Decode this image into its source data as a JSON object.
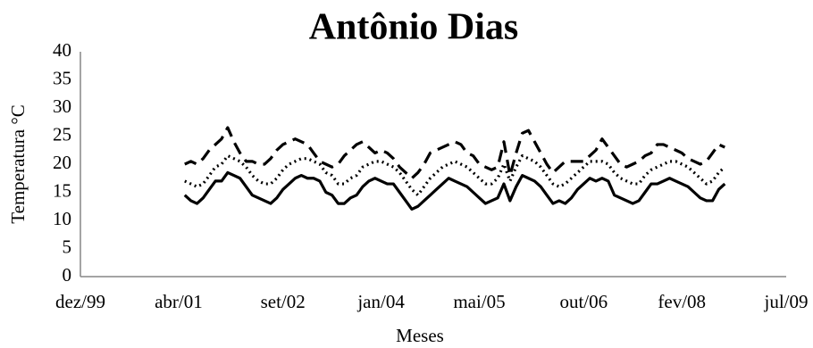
{
  "chart_data": {
    "type": "line",
    "title": "Antônio Dias",
    "x_label": "Meses",
    "y_label": "Temperatura °C",
    "x": [
      "2001-05",
      "2001-06",
      "2001-07",
      "2001-08",
      "2001-09",
      "2001-10",
      "2001-11",
      "2001-12",
      "2002-01",
      "2002-02",
      "2002-03",
      "2002-04",
      "2002-05",
      "2002-06",
      "2002-07",
      "2002-08",
      "2002-09",
      "2002-10",
      "2002-11",
      "2002-12",
      "2003-01",
      "2003-02",
      "2003-03",
      "2003-04",
      "2003-05",
      "2003-06",
      "2003-07",
      "2003-08",
      "2003-09",
      "2003-10",
      "2003-11",
      "2003-12",
      "2004-01",
      "2004-02",
      "2004-03",
      "2004-04",
      "2004-05",
      "2004-06",
      "2004-07",
      "2004-08",
      "2004-09",
      "2004-10",
      "2004-11",
      "2004-12",
      "2005-01",
      "2005-02",
      "2005-03",
      "2005-04",
      "2005-05",
      "2005-06",
      "2005-07",
      "2005-08",
      "2005-09",
      "2005-10",
      "2005-11",
      "2005-12",
      "2006-01",
      "2006-02",
      "2006-03",
      "2006-04",
      "2006-05",
      "2006-06",
      "2006-07",
      "2006-08",
      "2006-09",
      "2006-10",
      "2006-11",
      "2006-12",
      "2007-01",
      "2007-02",
      "2007-03",
      "2007-04",
      "2007-05",
      "2007-06",
      "2007-07",
      "2007-08",
      "2007-09",
      "2007-10",
      "2007-11",
      "2007-12",
      "2008-01",
      "2008-02",
      "2008-03",
      "2008-04",
      "2008-05",
      "2008-06",
      "2008-07",
      "2008-08",
      "2008-09"
    ],
    "series": [
      {
        "color": "#000000",
        "dash": "solid",
        "values": [
          14.5,
          13.5,
          13,
          14,
          15.5,
          17,
          17,
          18.5,
          18,
          17.5,
          16,
          14.5,
          14,
          13.5,
          13,
          14,
          15.5,
          16.5,
          17.5,
          18,
          17.5,
          17.5,
          17,
          15,
          14.5,
          13,
          13,
          14,
          14.5,
          16,
          17,
          17.5,
          17,
          16.5,
          16.5,
          15,
          13.5,
          12,
          12.5,
          13.5,
          14.5,
          15.5,
          16.5,
          17.5,
          17,
          16.5,
          16,
          15,
          14,
          13,
          13.5,
          14,
          16.5,
          13.5,
          16,
          18,
          17.5,
          17,
          16,
          14.5,
          13,
          13.5,
          13,
          14,
          15.5,
          16.5,
          17.5,
          17,
          17.5,
          17,
          14.5,
          14,
          13.5,
          13,
          13.5,
          15,
          16.5,
          16.5,
          17,
          17.5,
          17,
          16.5,
          16,
          15,
          14,
          13.5,
          13.5,
          15.5,
          16.5
        ]
      },
      {
        "color": "#000000",
        "dash": "dotted",
        "values": [
          17,
          16.5,
          16,
          16.5,
          18,
          19.5,
          20,
          21.5,
          21,
          20.5,
          19.5,
          18,
          17,
          16.5,
          16.5,
          17.5,
          19,
          20,
          20.5,
          21,
          21,
          20.5,
          20,
          18.5,
          18,
          16.5,
          16.5,
          17.5,
          18,
          19.5,
          20,
          20.5,
          20.5,
          20,
          19.5,
          18.5,
          17,
          15.5,
          14.5,
          16,
          17.5,
          18.5,
          19.5,
          20,
          20.5,
          20,
          19.5,
          18.5,
          17.5,
          16.5,
          16.5,
          17.5,
          20,
          17,
          19.5,
          21.5,
          21,
          20.5,
          19.5,
          18,
          16.5,
          16,
          16.5,
          17.5,
          18.5,
          19.5,
          20.5,
          20.5,
          20.5,
          20,
          18.5,
          17.5,
          17,
          16.5,
          16.5,
          18,
          19,
          19.5,
          20,
          20.5,
          20.5,
          20,
          19.5,
          18.5,
          17.5,
          16.5,
          17,
          18.5,
          19.5
        ]
      },
      {
        "color": "#000000",
        "dash": "dashed",
        "values": [
          20,
          20.5,
          20,
          21,
          22.5,
          23.5,
          24.5,
          26.5,
          24,
          22,
          20.5,
          20.5,
          20,
          20,
          21,
          22.5,
          23.5,
          24,
          24.5,
          24,
          23.5,
          22,
          20.5,
          20,
          19.5,
          20,
          21.5,
          22.5,
          23.5,
          24,
          23,
          22,
          22.5,
          22,
          21,
          19.5,
          18.5,
          17.5,
          18.5,
          20,
          22,
          22.5,
          23,
          23.5,
          24,
          23.5,
          22,
          21.5,
          20,
          19.5,
          19,
          19.5,
          24,
          18,
          22,
          25.5,
          26,
          24,
          22,
          20,
          18.5,
          19.5,
          20.5,
          20.5,
          20.5,
          20.5,
          21.5,
          22.5,
          24.5,
          23,
          21.5,
          20,
          19.5,
          20,
          20.5,
          21.5,
          22,
          23.5,
          23.5,
          23,
          22.5,
          22,
          21,
          20.5,
          20,
          20.5,
          22,
          23.5,
          23
        ]
      }
    ],
    "xlim": [
      "1999-12",
      "2009-07"
    ],
    "xticks": [
      {
        "value": "1999-12",
        "label": "dez/99"
      },
      {
        "value": "2001-04",
        "label": "abr/01"
      },
      {
        "value": "2002-09",
        "label": "set/02"
      },
      {
        "value": "2004-01",
        "label": "jan/04"
      },
      {
        "value": "2005-05",
        "label": "mai/05"
      },
      {
        "value": "2006-10",
        "label": "out/06"
      },
      {
        "value": "2008-02",
        "label": "fev/08"
      },
      {
        "value": "2009-07",
        "label": "jul/09"
      }
    ],
    "ylim": [
      0,
      40
    ],
    "yticks": [
      0,
      5,
      10,
      15,
      20,
      25,
      30,
      35,
      40
    ],
    "grid": false
  }
}
